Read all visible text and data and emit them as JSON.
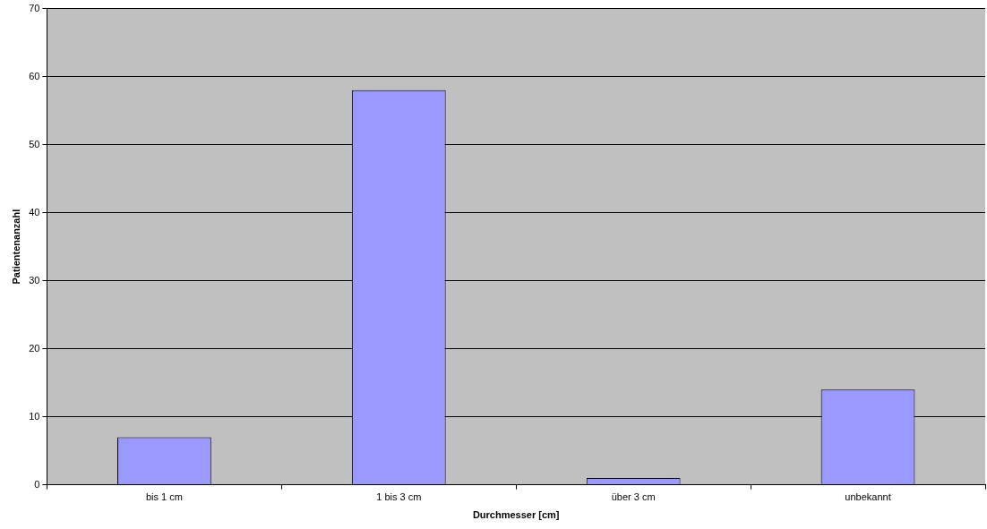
{
  "chart_data": {
    "type": "bar",
    "xlabel": "Durchmesser [cm]",
    "ylabel": "Patientenanzahl",
    "categories": [
      "bis 1 cm",
      "1 bis 3 cm",
      "über 3 cm",
      "unbekannt"
    ],
    "values": [
      7,
      58,
      1,
      14
    ],
    "color": "#9999ff",
    "ylim": [
      0,
      70
    ],
    "yticks": [
      0,
      10,
      20,
      30,
      40,
      50,
      60,
      70
    ],
    "grid": "y",
    "legend": false
  }
}
